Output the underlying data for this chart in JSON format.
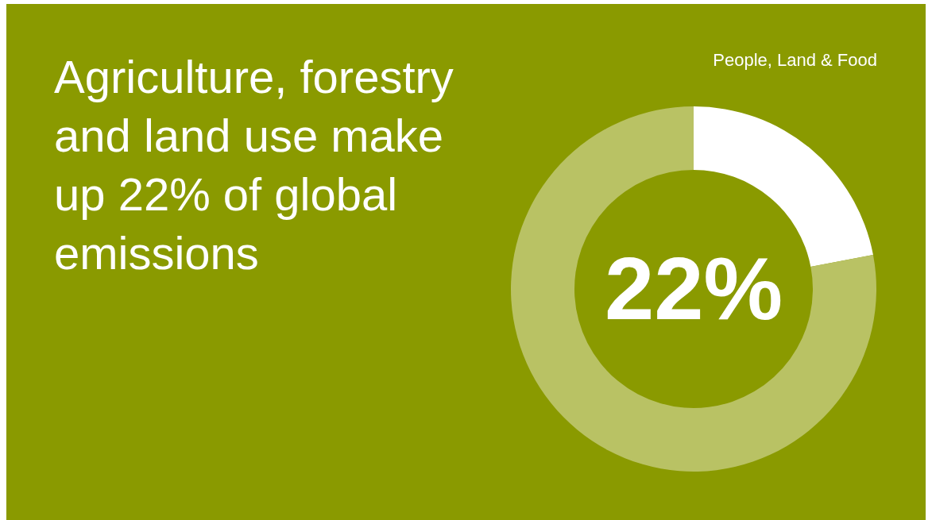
{
  "chart_data": {
    "type": "donut",
    "title": "Agriculture, forestry and land use make up 22% of global emissions",
    "subtitle": "People, Land & Food",
    "categories": [
      null,
      null
    ],
    "values": [
      22,
      78
    ],
    "colors": [
      "#ffffff",
      "#b9c264"
    ],
    "value_labels": [
      "22%",
      null
    ]
  }
}
